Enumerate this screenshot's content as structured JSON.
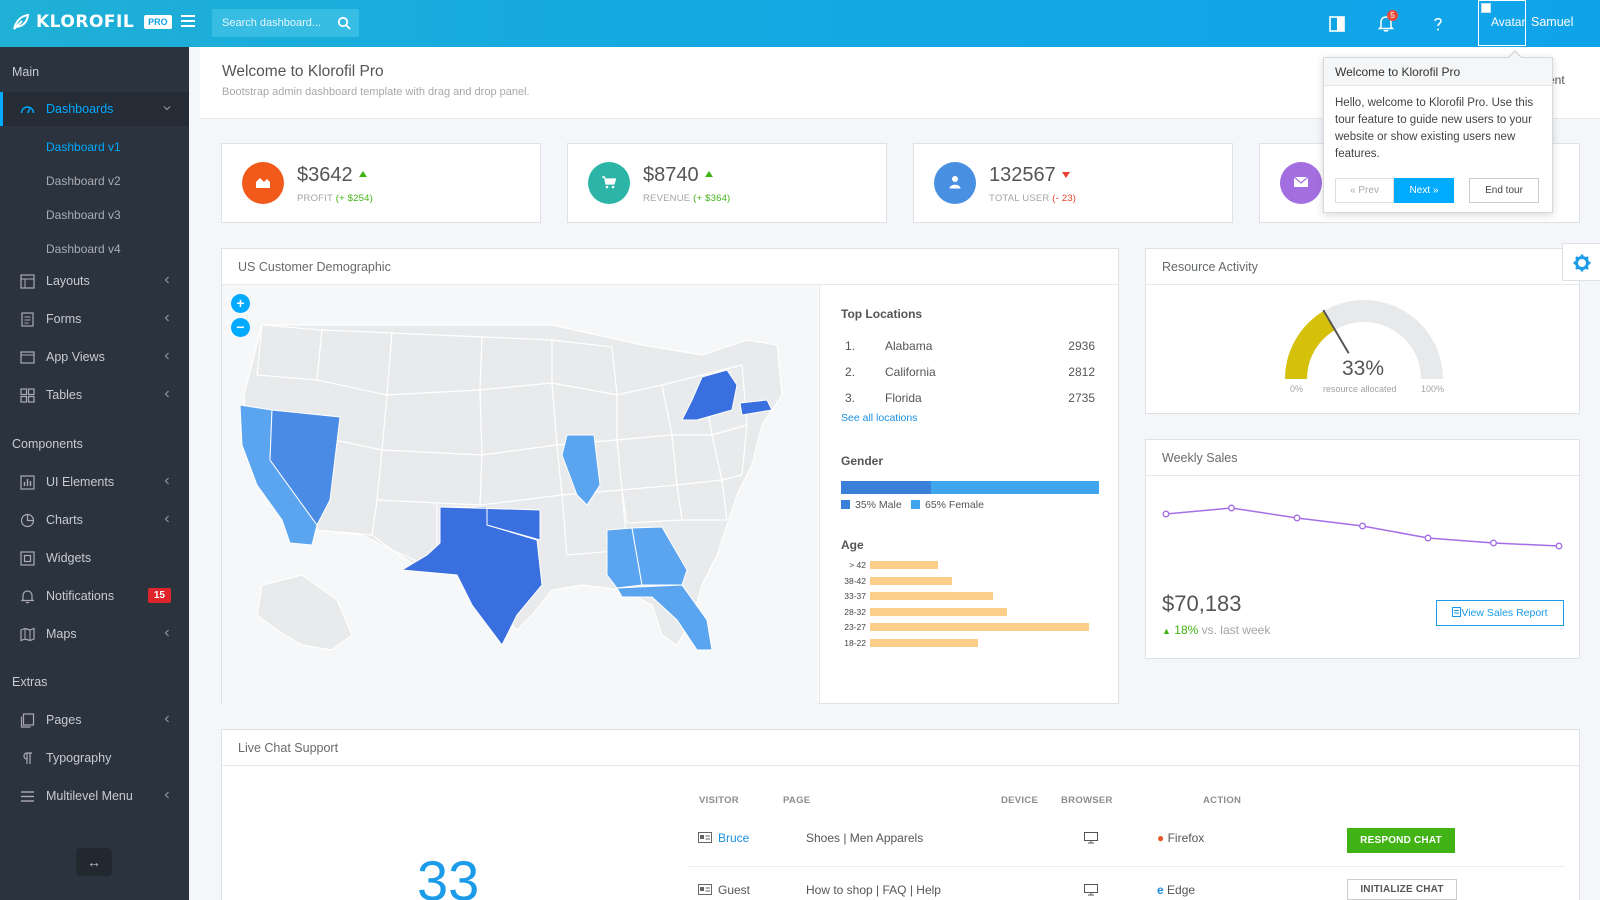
{
  "app": {
    "brand": "KLOROFIL",
    "badge": "PRO"
  },
  "header": {
    "search_placeholder": "Search dashboard...",
    "notification_count": "5",
    "avatar_alt": "Avatar",
    "user_name": "Samuel"
  },
  "sidebar": {
    "sections": {
      "main": "Main",
      "components": "Components",
      "extras": "Extras"
    },
    "dashboards": "Dashboards",
    "dashboard_subs": [
      "Dashboard v1",
      "Dashboard v2",
      "Dashboard v3",
      "Dashboard v4"
    ],
    "main_items": [
      "Layouts",
      "Forms",
      "App Views",
      "Tables"
    ],
    "component_items": [
      "UI Elements",
      "Charts",
      "Widgets",
      "Notifications",
      "Maps"
    ],
    "notifications_badge": "15",
    "extra_items": [
      "Pages",
      "Typography",
      "Multilevel Menu"
    ],
    "toggle_glyph": "↔"
  },
  "page": {
    "title": "Welcome to Klorofil Pro",
    "subtitle": "Bootstrap admin dashboard template with drag and drop panel.",
    "header_tail": "ent"
  },
  "metrics": [
    {
      "value": "$3642",
      "label": "PROFIT",
      "delta": "(+ $254)",
      "trend": "up",
      "color": "#f25a1c"
    },
    {
      "value": "$8740",
      "label": "REVENUE",
      "delta": "(+ $364)",
      "trend": "up",
      "color": "#2cb5a6"
    },
    {
      "value": "132567",
      "label": "TOTAL USER",
      "delta": "(- 23)",
      "trend": "down",
      "color": "#4a90e2"
    },
    {
      "value": "",
      "label": "",
      "delta": "",
      "trend": "",
      "color": "#a26ee0"
    }
  ],
  "demographic": {
    "title": "US Customer Demographic",
    "top_locations_title": "Top Locations",
    "locations": [
      {
        "rank": "1.",
        "state": "Alabama",
        "value": "2936"
      },
      {
        "rank": "2.",
        "state": "California",
        "value": "2812"
      },
      {
        "rank": "3.",
        "state": "Florida",
        "value": "2735"
      }
    ],
    "see_all": "See all locations",
    "gender_title": "Gender",
    "male_pct": 35,
    "male_label": "35% Male",
    "female_label": "65% Female",
    "age_title": "Age",
    "ages": [
      {
        "range": "> 42",
        "value": 33
      },
      {
        "range": "38-42",
        "value": 40
      },
      {
        "range": "33-37",
        "value": 60
      },
      {
        "range": "28-32",
        "value": 67
      },
      {
        "range": "23-27",
        "value": 107
      },
      {
        "range": "18-22",
        "value": 53
      }
    ]
  },
  "resource": {
    "title": "Resource Activity",
    "percent": 33,
    "percent_label": "33%",
    "caption": "resource allocated",
    "min_label": "0%",
    "max_label": "100%"
  },
  "weekly_sales": {
    "title": "Weekly Sales",
    "points": [
      62,
      68,
      58,
      50,
      38,
      33,
      30
    ],
    "value": "$70,183",
    "change": "18%",
    "change_suffix": " vs. last week",
    "button": "View Sales Report"
  },
  "chat": {
    "title": "Live Chat Support",
    "big_count": "33",
    "headers": {
      "visitor": "VISITOR",
      "page": "PAGE",
      "device": "DEVICE",
      "browser": "BROWSER",
      "action": "ACTION"
    },
    "rows": [
      {
        "visitor": "Bruce",
        "page": "Shoes | Men Apparels",
        "browser": "Firefox",
        "action": "RESPOND CHAT"
      },
      {
        "visitor": "Guest",
        "page": "How to shop | FAQ | Help",
        "browser": "Edge",
        "action": "INITIALIZE CHAT"
      }
    ]
  },
  "tour": {
    "title": "Welcome to Klorofil Pro",
    "body": "Hello, welcome to Klorofil Pro. Use this tour feature to guide new users to your website or show existing users new features.",
    "prev": "« Prev",
    "next": "Next »",
    "end": "End tour"
  }
}
